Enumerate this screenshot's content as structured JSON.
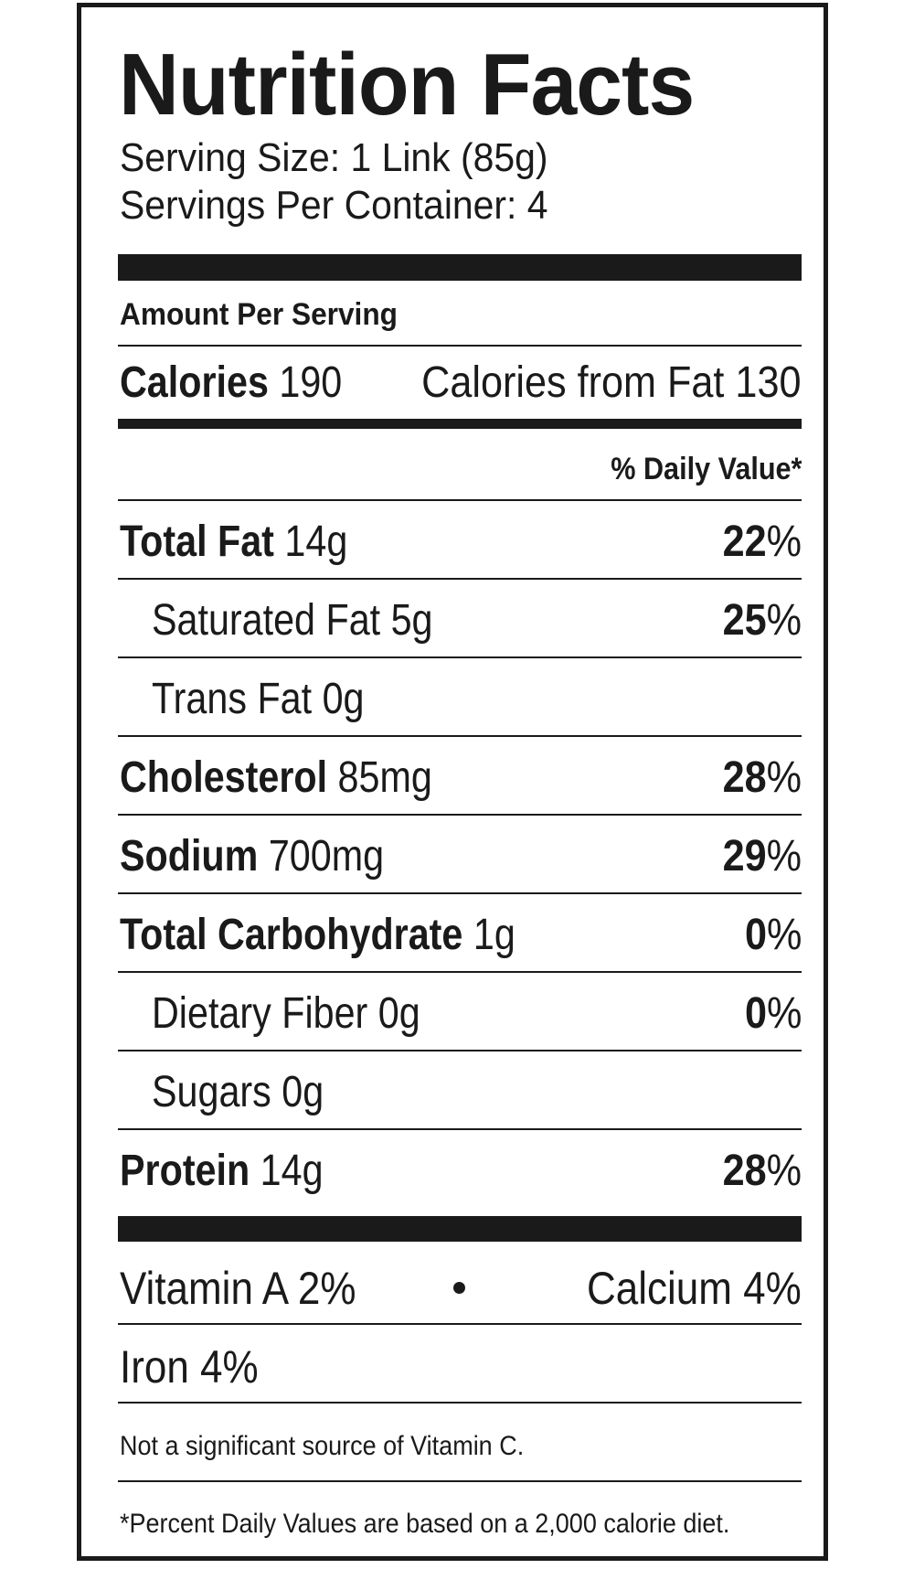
{
  "title": "Nutrition Facts",
  "serving_size": "Serving Size: 1 Link (85g)",
  "servings_per_container": "Servings Per Container: 4",
  "amount_per_serving": "Amount Per Serving",
  "calories": {
    "label": "Calories",
    "value": "190",
    "from_fat": "Calories from Fat 130"
  },
  "daily_value_header": "% Daily Value*",
  "nutrients": [
    {
      "name": "Total Fat",
      "amount": "14g",
      "dv": "22",
      "unit": "%"
    },
    {
      "name": "Saturated Fat 5g",
      "dv": "25",
      "unit": "%"
    },
    {
      "name": "Trans Fat 0g"
    },
    {
      "name": "Cholesterol",
      "amount": "85mg",
      "dv": "28",
      "unit": "%"
    },
    {
      "name": "Sodium",
      "amount": "700mg",
      "dv": "29",
      "unit": "%"
    },
    {
      "name": "Total Carbohydrate",
      "amount": "1g",
      "dv": "0",
      "unit": "%"
    },
    {
      "name": "Dietary Fiber 0g",
      "dv": "0",
      "unit": "%"
    },
    {
      "name": "Sugars 0g"
    },
    {
      "name": "Protein",
      "amount": "14g",
      "dv": "28",
      "unit": "%"
    }
  ],
  "vitamins": {
    "vitamin_a": "Vitamin A 2%",
    "calcium": "Calcium 4%",
    "iron": "Iron 4%"
  },
  "note": "Not a significant source of Vitamin C.",
  "footnote": "*Percent Daily Values are based on a 2,000 calorie diet."
}
